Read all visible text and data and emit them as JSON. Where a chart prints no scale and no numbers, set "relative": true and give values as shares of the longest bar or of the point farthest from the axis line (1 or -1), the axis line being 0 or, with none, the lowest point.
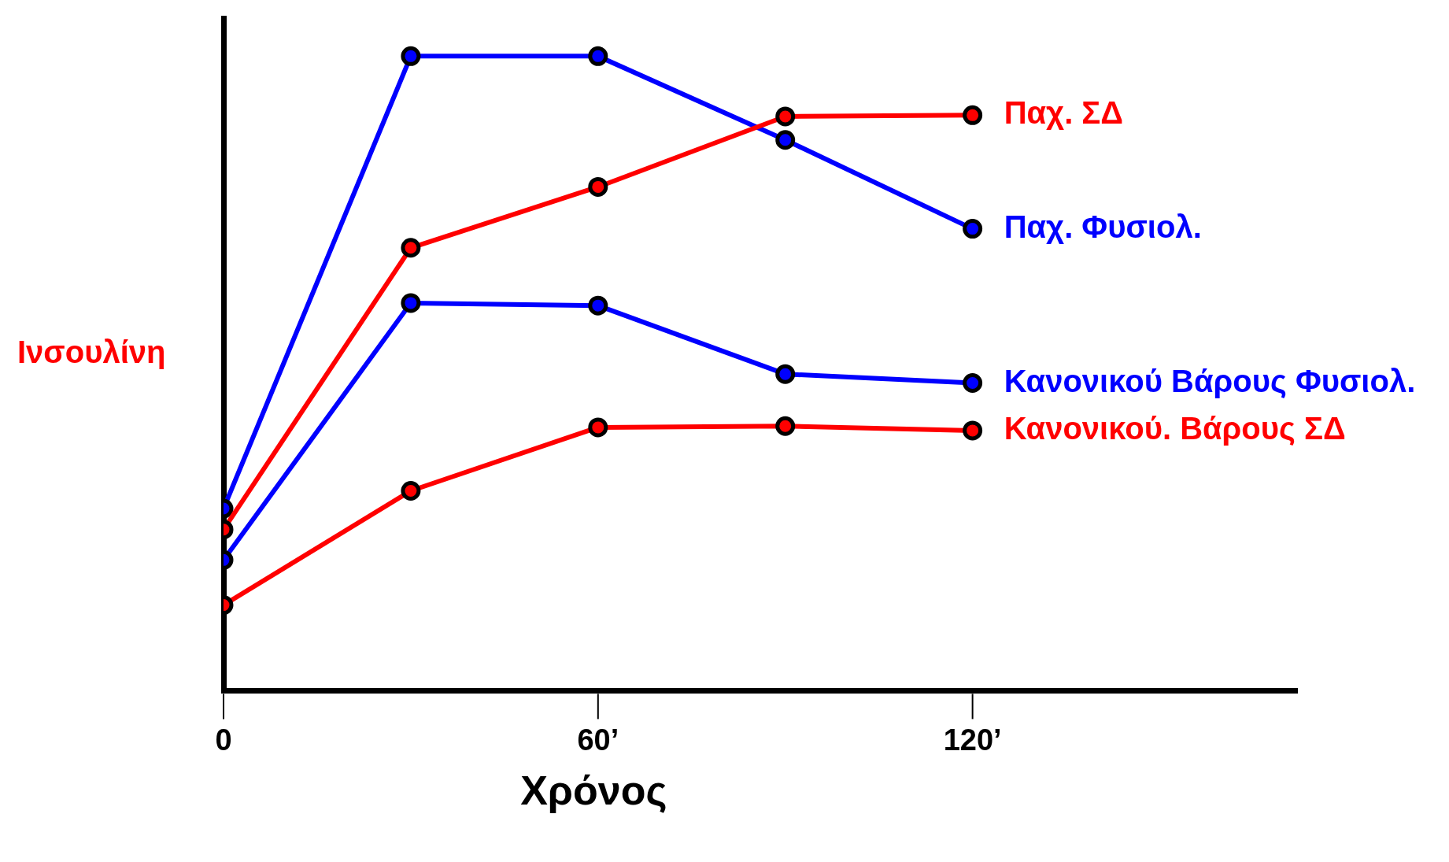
{
  "chart_data": {
    "type": "line",
    "relative": true,
    "xlabel": "Χρόνος",
    "ylabel": "Ινσουλίνη",
    "x": [
      0,
      30,
      60,
      90,
      120
    ],
    "xlim": [
      0,
      172
    ],
    "xticks": [
      0,
      {
        "value": 60,
        "label": "60’"
      },
      {
        "value": 120,
        "label": "120’"
      }
    ],
    "marker": "circle",
    "legend": false,
    "series": [
      {
        "name": "Παχ. ΣΔ",
        "color": "#ff0000",
        "values": [
          0.254,
          0.698,
          0.794,
          0.905,
          0.907
        ]
      },
      {
        "name": "Παχ. Φυσιολ.",
        "color": "#0000ff",
        "values": [
          0.287,
          1,
          1,
          0.868,
          0.728
        ]
      },
      {
        "name": "Κανονικού Βάρους Φυσιολ.",
        "color": "#0000ff",
        "values": [
          0.206,
          0.611,
          0.607,
          0.499,
          0.485
        ]
      },
      {
        "name": "Κανονικού. Βάρους ΣΔ",
        "color": "#ff0000",
        "values": [
          0.135,
          0.315,
          0.415,
          0.417,
          0.41
        ]
      }
    ]
  }
}
